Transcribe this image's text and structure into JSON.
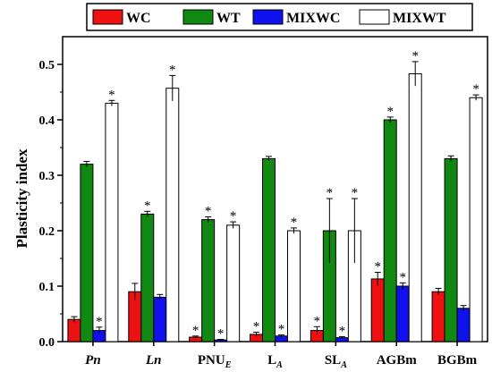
{
  "chart_data": {
    "type": "bar",
    "ylabel": "Plasticity index",
    "xlabel": "",
    "ylim": [
      0,
      0.55
    ],
    "yticks": [
      0.0,
      0.1,
      0.2,
      0.3,
      0.4,
      0.5
    ],
    "ytick_labels": [
      "0.0",
      "0.1",
      "0.2",
      "0.3",
      "0.4",
      "0.5"
    ],
    "categories": [
      {
        "main": "Pn",
        "sub": "",
        "italic": true
      },
      {
        "main": "Ln",
        "sub": "",
        "italic": true
      },
      {
        "main": "PNU",
        "sub": "E",
        "italic": false
      },
      {
        "main": "L",
        "sub": "A",
        "italic": false
      },
      {
        "main": "SL",
        "sub": "A",
        "italic": false
      },
      {
        "main": "AGBm",
        "sub": "",
        "italic": false
      },
      {
        "main": "BGBm",
        "sub": "",
        "italic": false
      }
    ],
    "legend_position": "top",
    "series": [
      {
        "name": "WC",
        "color": "#ee1111",
        "values": [
          0.04,
          0.09,
          0.008,
          0.013,
          0.02,
          0.113,
          0.09
        ],
        "errors": [
          0.005,
          0.015,
          0.002,
          0.004,
          0.007,
          0.012,
          0.006
        ],
        "significant": [
          false,
          false,
          true,
          true,
          true,
          true,
          false
        ]
      },
      {
        "name": "WT",
        "color": "#118811",
        "values": [
          0.32,
          0.23,
          0.22,
          0.33,
          0.2,
          0.4,
          0.33
        ],
        "errors": [
          0.005,
          0.005,
          0.005,
          0.004,
          0.058,
          0.005,
          0.005
        ],
        "significant": [
          false,
          true,
          true,
          false,
          true,
          true,
          false
        ]
      },
      {
        "name": "MIXWC",
        "color": "#1111ee",
        "values": [
          0.02,
          0.08,
          0.003,
          0.01,
          0.007,
          0.1,
          0.06
        ],
        "errors": [
          0.006,
          0.005,
          0.001,
          0.002,
          0.002,
          0.006,
          0.005
        ],
        "significant": [
          true,
          false,
          true,
          true,
          true,
          true,
          false
        ]
      },
      {
        "name": "MIXWT",
        "color": "#ffffff",
        "values": [
          0.43,
          0.457,
          0.21,
          0.2,
          0.2,
          0.483,
          0.44
        ],
        "errors": [
          0.005,
          0.023,
          0.006,
          0.005,
          0.058,
          0.022,
          0.005
        ],
        "significant": [
          true,
          true,
          true,
          true,
          true,
          true,
          true
        ]
      }
    ],
    "significance_marker": "*"
  }
}
